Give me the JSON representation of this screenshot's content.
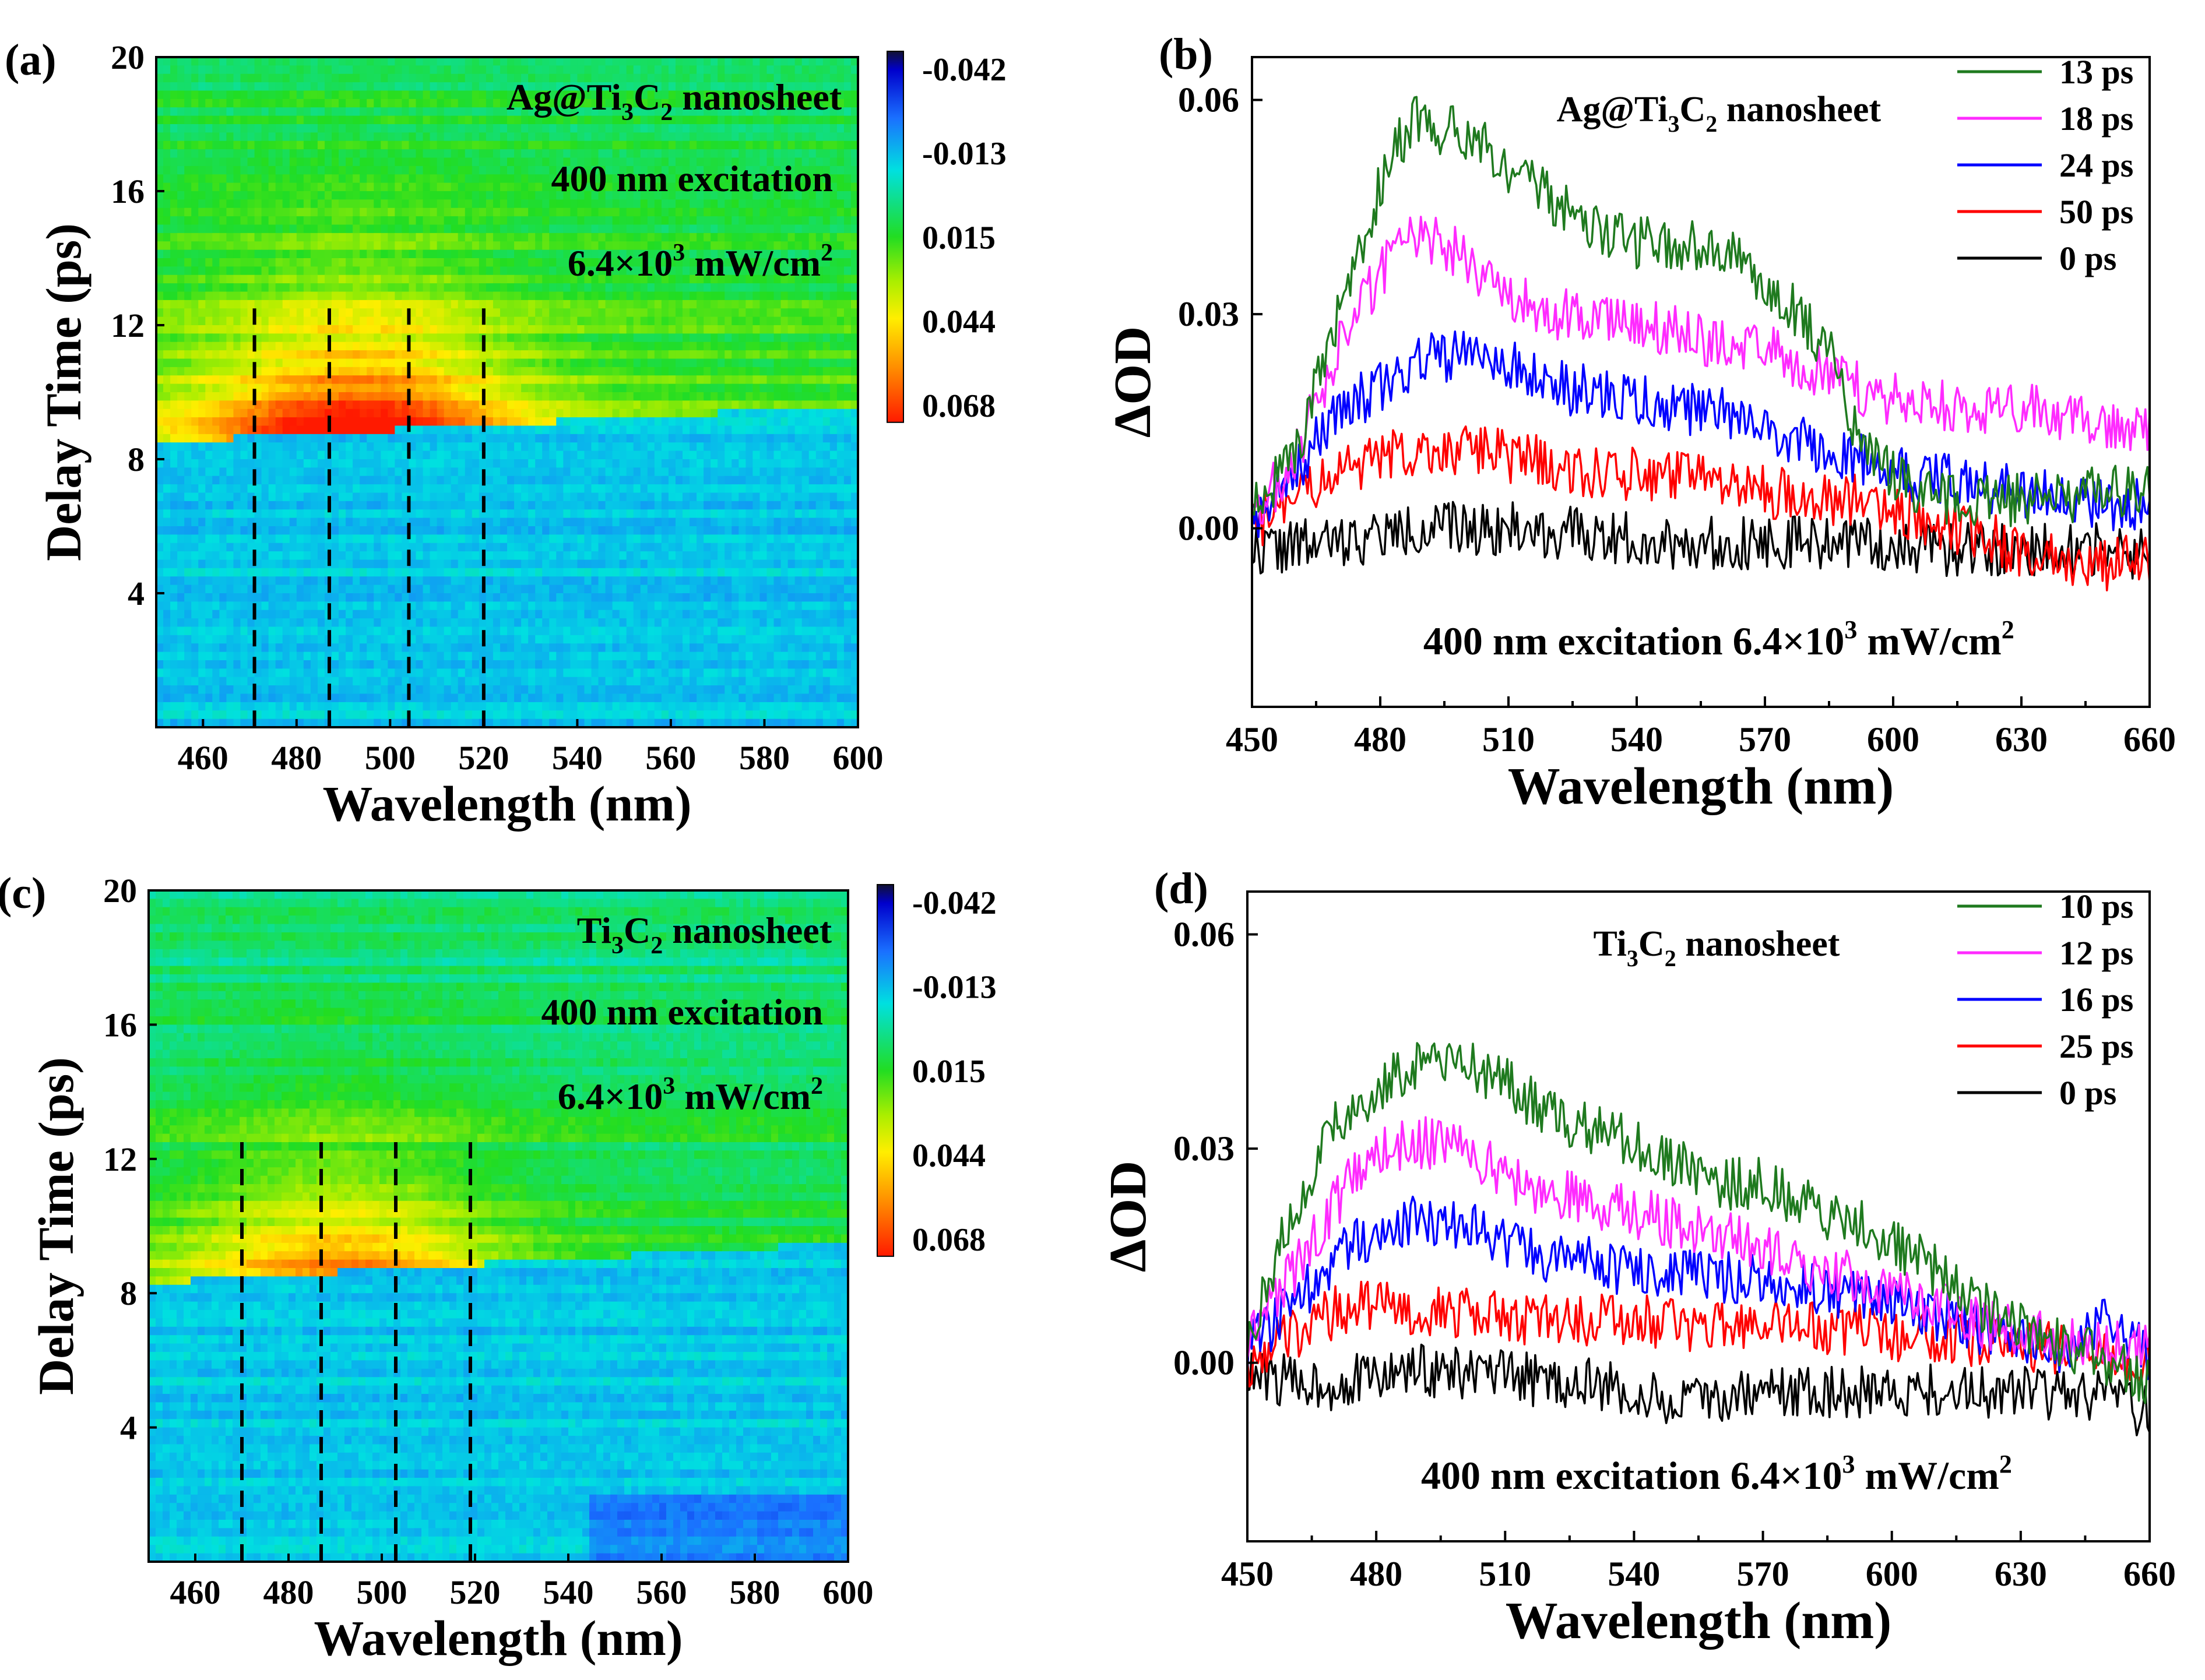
{
  "chart_data": [
    {
      "panel": "(a)",
      "type": "heatmap",
      "xlabel": "Wavelength (nm)",
      "ylabel": "Delay Time (ps)",
      "xlim": [
        450,
        600
      ],
      "ylim": [
        0,
        20
      ],
      "xticks": [
        460,
        480,
        500,
        520,
        540,
        560,
        580,
        600
      ],
      "yticks": [
        4,
        8,
        12,
        16,
        20
      ],
      "colorbar": {
        "ticks": [
          "-0.042",
          "-0.013",
          "0.015",
          "0.044",
          "0.068"
        ],
        "range": [
          -0.042,
          0.068
        ]
      },
      "annotation": {
        "line1": "Ag@Ti",
        "sub1": "3",
        "line1b": "C",
        "sub2": "2",
        "line1c": " nanosheet",
        "line2": "400 nm excitation",
        "line3": "6.4×10",
        "sup": "3",
        "line3b": " mW/cm",
        "sup2": "2"
      },
      "markers_x": [
        471,
        487,
        504,
        520
      ],
      "signal": {
        "onset_ps_at_450": 8.5,
        "onset_ps_at_600": 9.6,
        "peak_value": 0.068,
        "peak_nm": 492,
        "peak_ps": 9.8,
        "background": 0.005
      }
    },
    {
      "panel": "(b)",
      "type": "line",
      "xlabel": "Wavelength (nm)",
      "ylabel": "ΔOD",
      "xlim": [
        450,
        660
      ],
      "ylim": [
        -0.025,
        0.066
      ],
      "xticks": [
        450,
        480,
        510,
        540,
        570,
        600,
        630,
        660
      ],
      "yticks": [
        "0.00",
        "0.03",
        "0.06"
      ],
      "annotation_title": {
        "a": "Ag@Ti",
        "b": "3",
        "c": "C",
        "d": "2",
        "e": " nanosheet"
      },
      "annotation_bottom": {
        "a": "400 nm excitation   6.4×10",
        "b": "3",
        "c": " mW/cm",
        "d": "2"
      },
      "series": [
        {
          "name": "13 ps",
          "color": "#1f7a1f",
          "x": [
            450,
            460,
            470,
            480,
            487,
            495,
            505,
            515,
            525,
            540,
            555,
            565,
            575,
            585,
            590,
            600,
            610,
            630,
            650,
            660
          ],
          "values": [
            0.002,
            0.01,
            0.03,
            0.048,
            0.057,
            0.056,
            0.053,
            0.048,
            0.044,
            0.04,
            0.04,
            0.037,
            0.032,
            0.025,
            0.015,
            0.007,
            0.004,
            0.004,
            0.005,
            0.006
          ]
        },
        {
          "name": "18 ps",
          "color": "#ff2bff",
          "x": [
            450,
            460,
            470,
            480,
            487,
            495,
            505,
            515,
            530,
            545,
            560,
            575,
            590,
            600,
            620,
            640,
            660
          ],
          "values": [
            0.001,
            0.01,
            0.025,
            0.036,
            0.04,
            0.04,
            0.035,
            0.031,
            0.029,
            0.028,
            0.026,
            0.024,
            0.02,
            0.018,
            0.017,
            0.016,
            0.014
          ]
        },
        {
          "name": "24 ps",
          "color": "#0000ff",
          "x": [
            450,
            460,
            470,
            480,
            490,
            500,
            510,
            520,
            540,
            560,
            580,
            600,
            620,
            640,
            660
          ],
          "values": [
            0.001,
            0.008,
            0.016,
            0.02,
            0.024,
            0.024,
            0.023,
            0.02,
            0.018,
            0.016,
            0.012,
            0.008,
            0.006,
            0.004,
            0.003
          ]
        },
        {
          "name": "50 ps",
          "color": "#ff0000",
          "x": [
            450,
            460,
            470,
            480,
            490,
            500,
            510,
            530,
            550,
            570,
            590,
            610,
            630,
            650,
            660
          ],
          "values": [
            0.0,
            0.004,
            0.008,
            0.01,
            0.011,
            0.011,
            0.01,
            0.008,
            0.007,
            0.005,
            0.004,
            0.001,
            -0.003,
            -0.005,
            -0.004
          ]
        },
        {
          "name": "0   ps",
          "color": "#000000",
          "x": [
            450,
            470,
            490,
            510,
            530,
            550,
            570,
            590,
            610,
            630,
            650,
            660
          ],
          "values": [
            -0.003,
            -0.002,
            0.0,
            0.0,
            -0.001,
            -0.002,
            -0.002,
            -0.002,
            -0.003,
            -0.003,
            -0.003,
            -0.004
          ]
        }
      ]
    },
    {
      "panel": "(c)",
      "type": "heatmap",
      "xlabel": "Wavelength (nm)",
      "ylabel": "Delay Time (ps)",
      "xlim": [
        450,
        600
      ],
      "ylim": [
        0,
        20
      ],
      "xticks": [
        460,
        480,
        500,
        520,
        540,
        560,
        580,
        600
      ],
      "yticks": [
        4,
        8,
        12,
        16,
        20
      ],
      "colorbar": {
        "ticks": [
          "-0.042",
          "-0.013",
          "0.015",
          "0.044",
          "0.068"
        ],
        "range": [
          -0.042,
          0.068
        ]
      },
      "annotation": {
        "line1": "Ti",
        "sub1": "3",
        "line1b": "C",
        "sub2": "2",
        "line1c": " nanosheet",
        "line2": "400 nm excitation",
        "line3": "6.4×10",
        "sup": "3",
        "line3b": " mW/cm",
        "sup2": "2"
      },
      "markers_x": [
        470,
        487,
        503,
        519
      ],
      "signal": {
        "onset_ps_at_450": 8.3,
        "onset_ps_at_600": 9.5,
        "peak_value": 0.045,
        "peak_nm": 490,
        "peak_ps": 9.8,
        "background": 0.0
      }
    },
    {
      "panel": "(d)",
      "type": "line",
      "xlabel": "Wavelength (nm)",
      "ylabel": "ΔOD",
      "xlim": [
        450,
        660
      ],
      "ylim": [
        -0.025,
        0.066
      ],
      "xticks": [
        450,
        480,
        510,
        540,
        570,
        600,
        630,
        660
      ],
      "yticks": [
        "0.00",
        "0.03",
        "0.06"
      ],
      "annotation_title": {
        "a": "Ti",
        "b": "3",
        "c": "C",
        "d": "2",
        "e": " nanosheet"
      },
      "annotation_bottom": {
        "a": "400 nm excitation   6.4×10",
        "b": "3",
        "c": " mW/cm",
        "d": "2"
      },
      "series": [
        {
          "name": "10 ps",
          "color": "#1f7a1f",
          "x": [
            450,
            460,
            470,
            480,
            490,
            500,
            510,
            520,
            540,
            560,
            570,
            580,
            590,
            600,
            610,
            620,
            630,
            640,
            650,
            660
          ],
          "values": [
            0.003,
            0.02,
            0.033,
            0.038,
            0.042,
            0.042,
            0.039,
            0.035,
            0.031,
            0.025,
            0.025,
            0.022,
            0.02,
            0.017,
            0.013,
            0.008,
            0.005,
            0.003,
            0.0,
            -0.003
          ]
        },
        {
          "name": "12 ps",
          "color": "#ff2bff",
          "x": [
            450,
            460,
            470,
            480,
            490,
            500,
            510,
            520,
            540,
            560,
            580,
            600,
            620,
            640,
            660
          ],
          "values": [
            0.003,
            0.012,
            0.022,
            0.03,
            0.031,
            0.03,
            0.026,
            0.024,
            0.021,
            0.018,
            0.014,
            0.01,
            0.006,
            0.003,
            0.002
          ]
        },
        {
          "name": "16 ps",
          "color": "#0000ff",
          "x": [
            450,
            460,
            470,
            480,
            490,
            500,
            510,
            520,
            540,
            560,
            580,
            600,
            620,
            640,
            650,
            660
          ],
          "values": [
            0.002,
            0.008,
            0.014,
            0.019,
            0.02,
            0.019,
            0.017,
            0.015,
            0.013,
            0.012,
            0.011,
            0.008,
            0.005,
            0.002,
            0.007,
            0.001
          ]
        },
        {
          "name": "25 ps",
          "color": "#ff0000",
          "x": [
            450,
            460,
            470,
            480,
            500,
            520,
            540,
            560,
            580,
            600,
            620,
            640,
            660
          ],
          "values": [
            0.0,
            0.004,
            0.007,
            0.008,
            0.007,
            0.006,
            0.006,
            0.005,
            0.005,
            0.004,
            0.003,
            0.002,
            0.0
          ]
        },
        {
          "name": "0   ps",
          "color": "#000000",
          "x": [
            450,
            470,
            490,
            510,
            530,
            550,
            570,
            590,
            610,
            630,
            650,
            660
          ],
          "values": [
            -0.002,
            -0.003,
            -0.001,
            -0.002,
            -0.003,
            -0.006,
            -0.004,
            -0.004,
            -0.004,
            -0.004,
            -0.005,
            -0.007
          ]
        }
      ]
    }
  ]
}
